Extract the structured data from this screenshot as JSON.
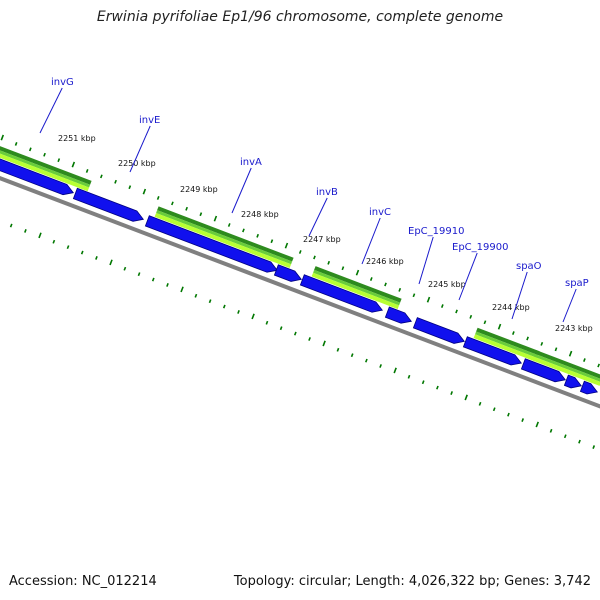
{
  "header": {
    "title": "Erwinia pyrifoliae Ep1/96 chromosome, complete genome"
  },
  "footer": {
    "accession": "Accession: NC_012214",
    "summary": "Topology: circular; Length: 4,026,322 bp; Genes: 3,742"
  },
  "colors": {
    "cds_forward": "#1010ee",
    "cds_outline": "#000080",
    "backbone": "#808080",
    "ticks": "#007700",
    "green_dark": "#2e8b1e",
    "green_mid": "#6acd3a",
    "green_light": "#b8ff33",
    "label": "#1a1acc"
  },
  "kbp_labels": [
    "2251 kbp",
    "2250 kbp",
    "2249 kbp",
    "2248 kbp",
    "2247 kbp",
    "2246 kbp",
    "2245 kbp",
    "2244 kbp",
    "2243 kbp"
  ],
  "genes": [
    "invG",
    "invE",
    "invA",
    "invB",
    "invC",
    "EpC_19910",
    "EpC_19900",
    "spaO",
    "spaP"
  ]
}
